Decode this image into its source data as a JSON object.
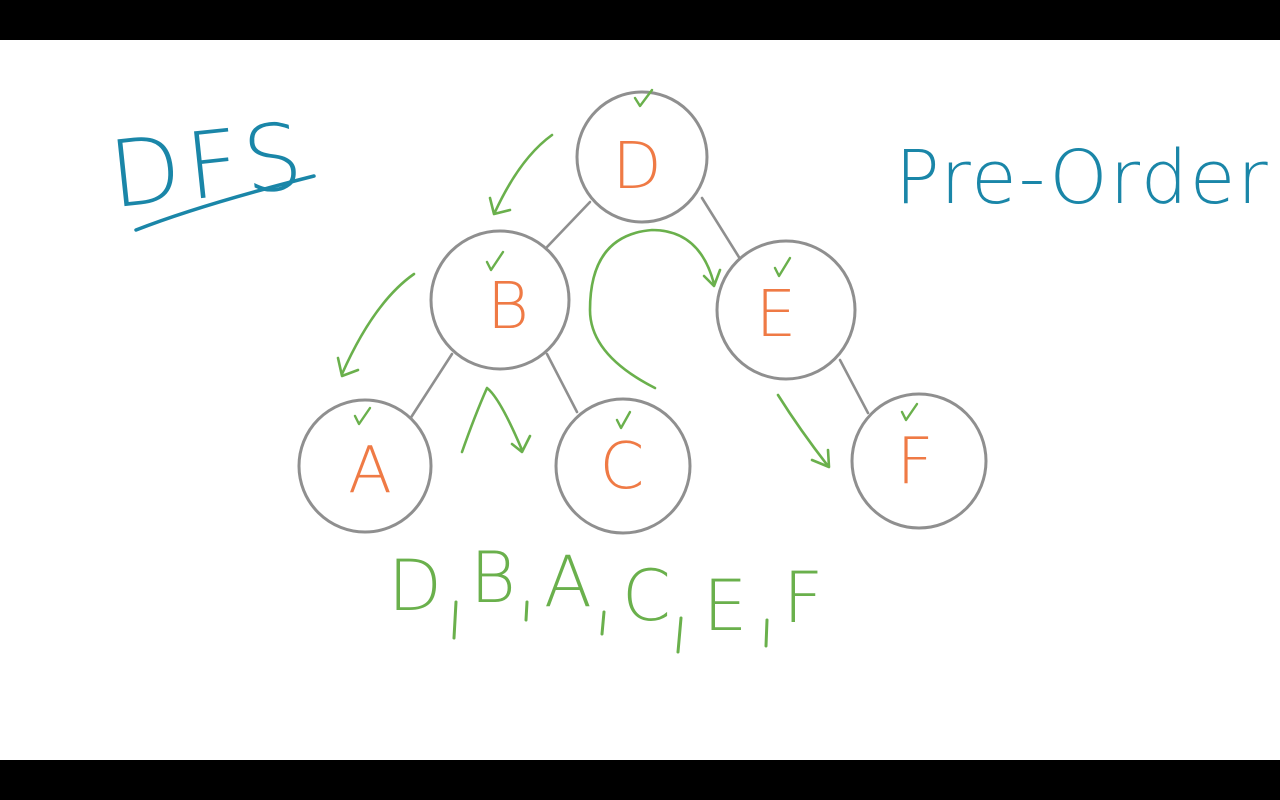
{
  "title": "DFS",
  "subtitle": "Pre-Order",
  "nodes": {
    "d": "D",
    "b": "B",
    "e": "E",
    "a": "A",
    "c": "C",
    "f": "F"
  },
  "traversal_order": [
    "D",
    "B",
    "A",
    "C",
    "E",
    "F"
  ],
  "colors": {
    "heading": "#1a86a8",
    "node_label": "#ef7a45",
    "traversal": "#6ab04c",
    "node_outline": "#8f8f8f",
    "letterbox": "#000000",
    "board": "#ffffff"
  }
}
